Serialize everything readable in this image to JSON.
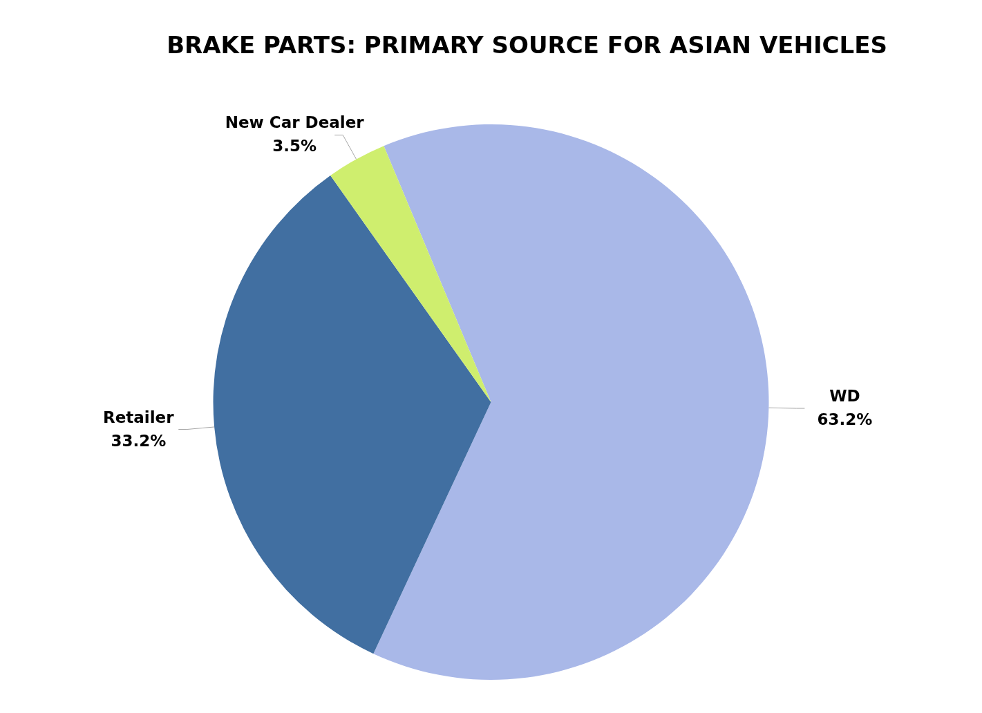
{
  "chart_data": {
    "type": "pie",
    "title": "BRAKE PARTS: PRIMARY SOURCE FOR ASIAN VEHICLES",
    "categories": [
      "WD",
      "Retailer",
      "New Car Dealer"
    ],
    "values": [
      63.2,
      33.2,
      3.5
    ],
    "value_labels": [
      "63.2%",
      "33.2%",
      "3.5%"
    ],
    "colors": [
      "#a9b8e8",
      "#416fa1",
      "#cfee6e"
    ],
    "legend": false
  }
}
